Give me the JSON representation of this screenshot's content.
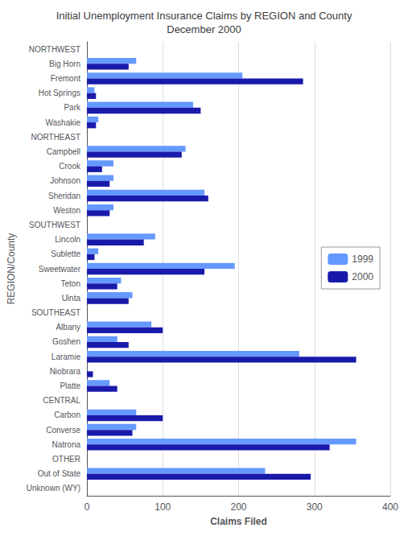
{
  "chart_data": {
    "type": "bar",
    "orientation": "horizontal",
    "title": "Initial Unemployment Insurance Claims by REGION and County\nDecember 2000",
    "xlabel": "Claims Filed",
    "ylabel": "REGION/County",
    "categories": [
      "NORTHWEST",
      "Big Horn",
      "Fremont",
      "Hot Springs",
      "Park",
      "Washakie",
      "NORTHEAST",
      "Campbell",
      "Crook",
      "Johnson",
      "Sheridan",
      "Weston",
      "SOUTHWEST",
      "Lincoln",
      "Sublette",
      "Sweetwater",
      "Teton",
      "Uinta",
      "SOUTHEAST",
      "Albany",
      "Goshen",
      "Laramie",
      "Niobrara",
      "Platte",
      "CENTRAL",
      "Carbon",
      "Converse",
      "Natrona",
      "OTHER",
      "Out of State",
      "Unknown (WY)"
    ],
    "series": [
      {
        "name": "1999",
        "color": "#6699ff",
        "values": [
          0,
          65,
          205,
          10,
          140,
          15,
          0,
          130,
          35,
          35,
          155,
          35,
          0,
          90,
          15,
          195,
          45,
          60,
          0,
          85,
          40,
          280,
          0,
          30,
          0,
          65,
          65,
          355,
          0,
          235,
          0
        ]
      },
      {
        "name": "2000",
        "color": "#1a1aaa",
        "values": [
          0,
          55,
          285,
          12,
          150,
          12,
          0,
          125,
          20,
          30,
          160,
          30,
          0,
          75,
          10,
          155,
          40,
          55,
          0,
          100,
          55,
          355,
          8,
          40,
          0,
          100,
          60,
          320,
          0,
          295,
          0
        ]
      }
    ],
    "xlim": [
      0,
      400
    ],
    "xticks": [
      0,
      100,
      200,
      300,
      400
    ],
    "grid": true,
    "legend": "right"
  }
}
